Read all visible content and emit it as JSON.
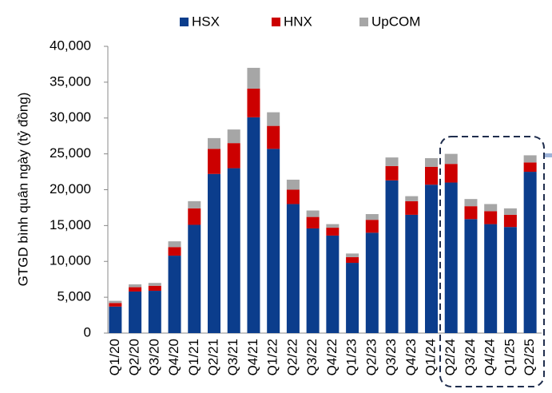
{
  "chart_data": {
    "type": "stacked_bar",
    "y_label": "GTGD bình quân ngày (tỷ đồng)",
    "categories": [
      "Q1/20",
      "Q2/20",
      "Q3/20",
      "Q4/20",
      "Q1/21",
      "Q2/21",
      "Q3/21",
      "Q4/21",
      "Q1/22",
      "Q2/22",
      "Q3/22",
      "Q4/22",
      "Q1/23",
      "Q2/23",
      "Q3/23",
      "Q4/23",
      "Q1/24",
      "Q2/24",
      "Q3/24",
      "Q4/24",
      "Q1/25",
      "Q2/25"
    ],
    "series": [
      {
        "name": "HSX",
        "color": "#0b3d8c",
        "values": [
          3700,
          5800,
          5900,
          10800,
          15100,
          22200,
          23000,
          30100,
          25700,
          18000,
          14600,
          13600,
          9800,
          14000,
          21300,
          16500,
          20700,
          21000,
          15900,
          15200,
          14800,
          22500
        ]
      },
      {
        "name": "HNX",
        "color": "#cc0000",
        "values": [
          500,
          600,
          700,
          1200,
          2300,
          3500,
          3500,
          4000,
          3200,
          2000,
          1600,
          1100,
          800,
          1800,
          2000,
          1900,
          2500,
          2600,
          1800,
          1800,
          1700,
          1300
        ]
      },
      {
        "name": "UpCOM",
        "color": "#a6a6a6",
        "values": [
          300,
          400,
          400,
          800,
          1000,
          1500,
          1900,
          2900,
          1900,
          1400,
          900,
          500,
          500,
          800,
          1200,
          700,
          1200,
          1400,
          1000,
          1000,
          900,
          1000
        ]
      }
    ],
    "ylim": [
      0,
      40000
    ],
    "yticks": [
      0,
      {
        "value": 5000,
        "label": "5,000"
      },
      {
        "value": 10000,
        "label": "10,000"
      },
      {
        "value": 15000,
        "label": "15,000"
      },
      {
        "value": 20000,
        "label": "20,000"
      },
      {
        "value": 25000,
        "label": "25,000"
      },
      {
        "value": 30000,
        "label": "30,000"
      },
      {
        "value": 35000,
        "label": "35,000"
      },
      {
        "value": 40000,
        "label": "40,000"
      }
    ]
  }
}
